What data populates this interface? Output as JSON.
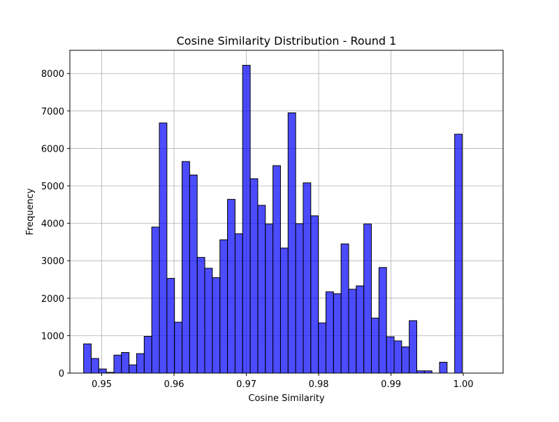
{
  "chart_data": {
    "type": "bar",
    "title": "Cosine Similarity Distribution - Round 1",
    "xlabel": "Cosine Similarity",
    "ylabel": "Frequency",
    "xlim": [
      0.9456,
      1.0055
    ],
    "ylim": [
      0,
      8620
    ],
    "grid": true,
    "bar_color": "#0000ff",
    "bar_opacity": 0.7,
    "edge_color": "#000000",
    "bin_start": 0.9475,
    "bin_width": 0.001047,
    "values": [
      780,
      390,
      110,
      20,
      480,
      550,
      220,
      520,
      980,
      3900,
      6680,
      2530,
      1360,
      5650,
      5290,
      3090,
      2800,
      2550,
      3560,
      4640,
      3720,
      8220,
      5190,
      4480,
      3980,
      5540,
      3340,
      6950,
      3990,
      5080,
      4200,
      1340,
      2170,
      2120,
      3450,
      2240,
      2330,
      3980,
      1470,
      2820,
      970,
      860,
      700,
      1400,
      60,
      60,
      0,
      290,
      0,
      6380
    ],
    "xticks": [
      0.95,
      0.96,
      0.97,
      0.98,
      0.99,
      1.0
    ],
    "xtick_labels": [
      "0.95",
      "0.96",
      "0.97",
      "0.98",
      "0.99",
      "1.00"
    ],
    "yticks": [
      0,
      1000,
      2000,
      3000,
      4000,
      5000,
      6000,
      7000,
      8000
    ],
    "ytick_labels": [
      "0",
      "1000",
      "2000",
      "3000",
      "4000",
      "5000",
      "6000",
      "7000",
      "8000"
    ]
  }
}
